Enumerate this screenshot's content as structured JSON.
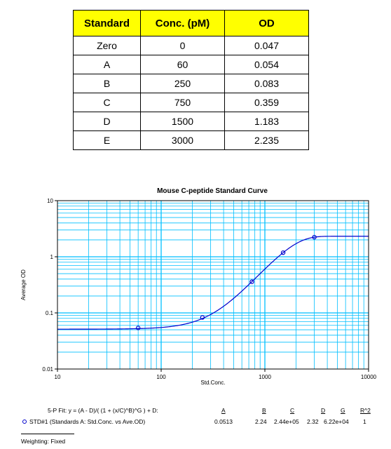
{
  "table": {
    "headers": [
      "Standard",
      "Conc. (pM)",
      "OD"
    ],
    "rows": [
      [
        "Zero",
        "0",
        "0.047"
      ],
      [
        "A",
        "60",
        "0.054"
      ],
      [
        "B",
        "250",
        "0.083"
      ],
      [
        "C",
        "750",
        "0.359"
      ],
      [
        "D",
        "1500",
        "1.183"
      ],
      [
        "E",
        "3000",
        "2.235"
      ]
    ]
  },
  "chart_data": {
    "type": "scatter",
    "title": "Mouse C-peptide Standard Curve",
    "xlabel": "Std.Conc.",
    "ylabel": "Average OD",
    "xscale": "log",
    "yscale": "log",
    "xlim": [
      10,
      10000
    ],
    "ylim": [
      0.01,
      10
    ],
    "x_ticks": [
      "10",
      "100",
      "1000",
      "10000"
    ],
    "y_ticks": [
      "0.01",
      "0.1",
      "1",
      "10"
    ],
    "grid": true,
    "series": [
      {
        "name": "STD#1 (Standards A: Std.Conc. vs Ave.OD)",
        "x": [
          60,
          250,
          750,
          1500,
          3000
        ],
        "y": [
          0.054,
          0.083,
          0.359,
          1.183,
          2.235
        ]
      }
    ],
    "fit": {
      "model": "5-P",
      "params": {
        "A": 0.0513,
        "B": 2.24,
        "C": 244000,
        "D": 2.32,
        "G": 62200
      }
    },
    "colors": {
      "series": "#0000cc",
      "grid": "#00bfff",
      "frame": "#000000"
    }
  },
  "fit_text": {
    "equation": "5-P Fit: y = (A - D)/( (1 + (x/C)^B)^G ) + D:",
    "headers": [
      "A",
      "B",
      "C",
      "D",
      "G",
      "R^2"
    ],
    "series_label": "STD#1 (Standards A: Std.Conc. vs Ave.OD)",
    "values": [
      "0.0513",
      "2.24",
      "2.44e+05",
      "2.32",
      "6.22e+04",
      "1"
    ],
    "weighting": "Weighting: Fixed"
  }
}
